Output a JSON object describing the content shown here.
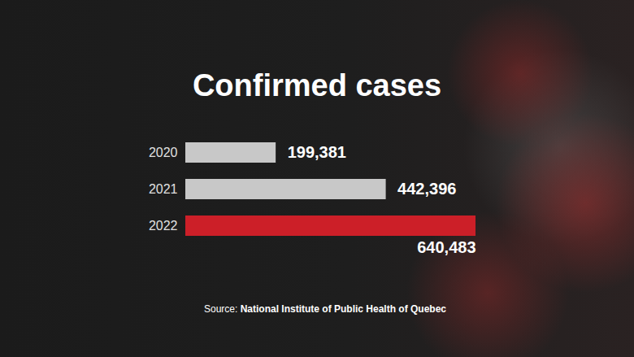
{
  "chart_data": {
    "type": "bar",
    "title": "Confirmed cases",
    "orientation": "horizontal",
    "categories": [
      "2020",
      "2021",
      "2022"
    ],
    "values": [
      199381,
      442396,
      640483
    ],
    "value_labels": [
      "199,381",
      "442,396",
      "640,483"
    ],
    "colors": [
      "#c8c8c8",
      "#c8c8c8",
      "#cc1f28"
    ],
    "xlim": [
      0,
      640483
    ],
    "xticks": [],
    "data_labels": true,
    "tick_labels": "y",
    "grid": false,
    "caption": "Source: National Institute of Public Health of Quebec"
  }
}
